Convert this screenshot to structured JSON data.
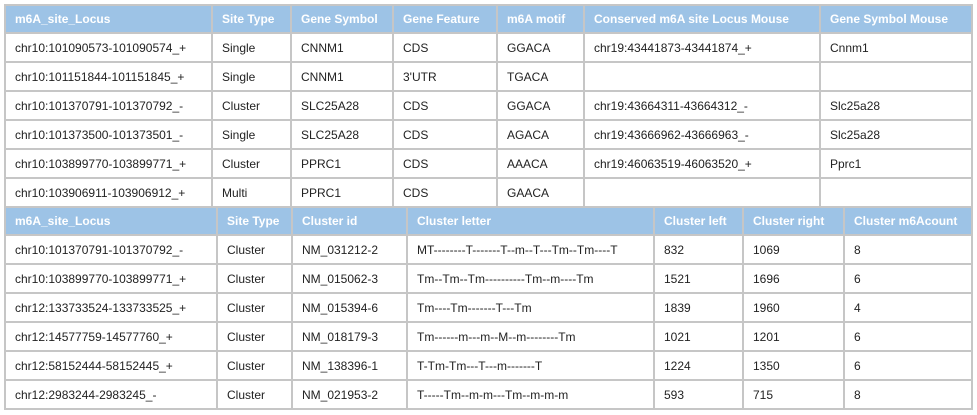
{
  "table1": {
    "headers": [
      "m6A_site_Locus",
      "Site Type",
      "Gene Symbol",
      "Gene Feature",
      "m6A motif",
      "Conserved m6A site Locus Mouse",
      "Gene Symbol Mouse"
    ],
    "rows": [
      [
        "chr10:101090573-101090574_+",
        "Single",
        "CNNM1",
        "CDS",
        "GGACA",
        "chr19:43441873-43441874_+",
        "Cnnm1"
      ],
      [
        "chr10:101151844-101151845_+",
        "Single",
        "CNNM1",
        "3'UTR",
        "TGACA",
        "",
        ""
      ],
      [
        "chr10:101370791-101370792_-",
        "Cluster",
        "SLC25A28",
        "CDS",
        "GGACA",
        "chr19:43664311-43664312_-",
        "Slc25a28"
      ],
      [
        "chr10:101373500-101373501_-",
        "Single",
        "SLC25A28",
        "CDS",
        "AGACA",
        "chr19:43666962-43666963_-",
        "Slc25a28"
      ],
      [
        "chr10:103899770-103899771_+",
        "Cluster",
        "PPRC1",
        "CDS",
        "AAACA",
        "chr19:46063519-46063520_+",
        "Pprc1"
      ],
      [
        "chr10:103906911-103906912_+",
        "Multi",
        "PPRC1",
        "CDS",
        "GAACA",
        "",
        ""
      ]
    ]
  },
  "table2": {
    "headers": [
      "m6A_site_Locus",
      "Site Type",
      "Cluster id",
      "Cluster letter",
      "Cluster left",
      "Cluster right",
      "Cluster m6Acount"
    ],
    "rows": [
      [
        "chr10:101370791-101370792_-",
        "Cluster",
        "NM_031212-2",
        "MT--------T-------T--m--T---Tm--Tm----T",
        "832",
        "1069",
        "8"
      ],
      [
        "chr10:103899770-103899771_+",
        "Cluster",
        "NM_015062-3",
        "Tm--Tm--Tm----------Tm--m----Tm",
        "1521",
        "1696",
        "6"
      ],
      [
        "chr12:133733524-133733525_+",
        "Cluster",
        "NM_015394-6",
        "Tm----Tm-------T---Tm",
        "1839",
        "1960",
        "4"
      ],
      [
        "chr12:14577759-14577760_+",
        "Cluster",
        "NM_018179-3",
        "Tm------m---m--M--m--------Tm",
        "1021",
        "1201",
        "6"
      ],
      [
        "chr12:58152444-58152445_+",
        "Cluster",
        "NM_138396-1",
        "T-Tm-Tm---T---m-------T",
        "1224",
        "1350",
        "6"
      ],
      [
        "chr12:2983244-2983245_-",
        "Cluster",
        "NM_021953-2",
        "T-----Tm--m-m---Tm--m-m-m",
        "593",
        "715",
        "8"
      ]
    ]
  },
  "colors": {
    "header_bg": "#9dc3e6",
    "header_text": "#ffffff",
    "border": "#c6c6c6"
  }
}
